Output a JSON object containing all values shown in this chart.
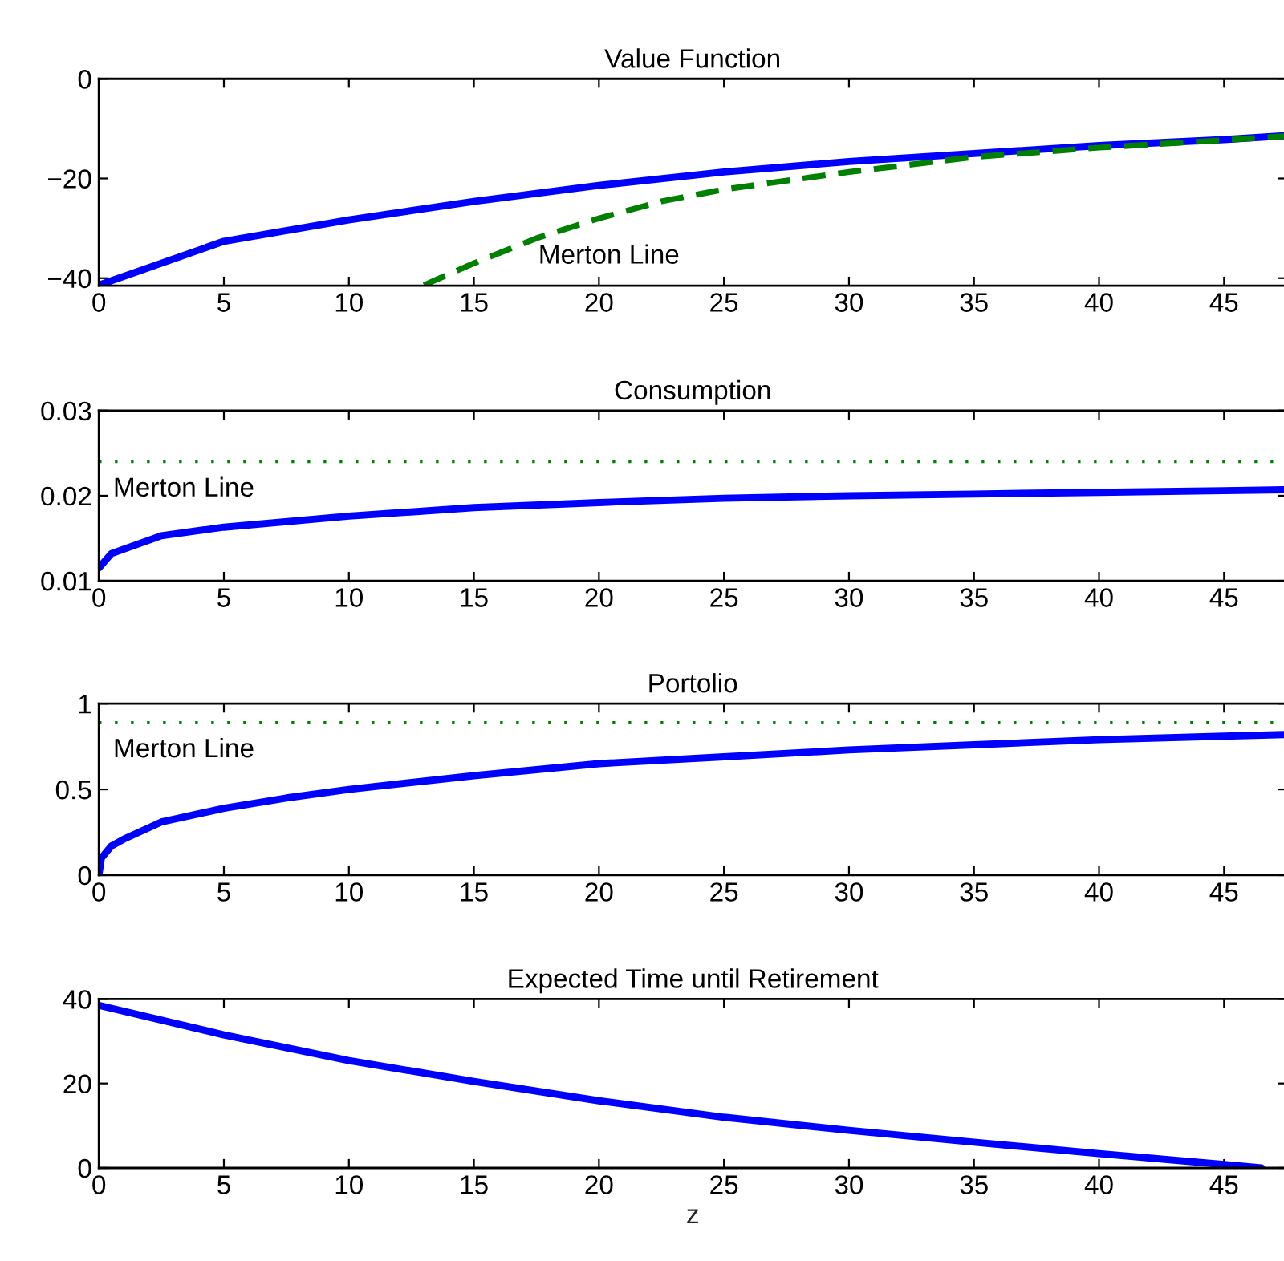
{
  "chart_data": [
    {
      "type": "line",
      "title": "Value Function",
      "xlim": [
        0,
        47.5
      ],
      "xticks": [
        0,
        5,
        10,
        15,
        20,
        25,
        30,
        35,
        40,
        45
      ],
      "ylim": [
        -41.5,
        0
      ],
      "yticks": [
        {
          "value": -40,
          "label": "−40"
        },
        {
          "value": -20,
          "label": "−20"
        },
        0
      ],
      "series": [
        {
          "color": "#0000ff",
          "line_style": "solid",
          "x": [
            0,
            2.5,
            5,
            10,
            15,
            20,
            25,
            30,
            35,
            40,
            45,
            47.5
          ],
          "values": [
            -41.4,
            -37,
            -32.6,
            -28.3,
            -24.6,
            -21.4,
            -18.7,
            -16.6,
            -15,
            -13.4,
            -12.2,
            -11.4
          ]
        },
        {
          "color": "#008000",
          "line_style": "dashed",
          "x": [
            13,
            15,
            17.5,
            20,
            22.5,
            25,
            30,
            35,
            40,
            45,
            47.5
          ],
          "values": [
            -41.4,
            -37,
            -32,
            -28,
            -24.6,
            -22.2,
            -18.7,
            -15.7,
            -13.8,
            -12.3,
            -11.5
          ]
        }
      ],
      "annotations": [
        "Merton Line"
      ]
    },
    {
      "type": "line",
      "title": "Consumption",
      "xlim": [
        0,
        47.5
      ],
      "xticks": [
        0,
        5,
        10,
        15,
        20,
        25,
        30,
        35,
        40,
        45
      ],
      "ylim": [
        0.01,
        0.03
      ],
      "yticks": [
        0.01,
        0.02,
        0.03
      ],
      "series": [
        {
          "color": "#0000ff",
          "line_style": "solid",
          "x": [
            0,
            0.5,
            2.5,
            5,
            10,
            15,
            20,
            25,
            30,
            35,
            40,
            45,
            47.5
          ],
          "values": [
            0.0115,
            0.0132,
            0.0153,
            0.0163,
            0.0176,
            0.0186,
            0.0192,
            0.0197,
            0.02,
            0.0202,
            0.0204,
            0.0206,
            0.0207
          ]
        }
      ],
      "ref_lines": [
        {
          "axis": "y",
          "value": 0.024,
          "label": "Merton Line",
          "color": "#008000",
          "line_style": "dotted"
        }
      ]
    },
    {
      "type": "line",
      "title": "Portolio",
      "xlim": [
        0,
        47.5
      ],
      "xticks": [
        0,
        5,
        10,
        15,
        20,
        25,
        30,
        35,
        40,
        45
      ],
      "ylim": [
        0,
        1
      ],
      "yticks": [
        0,
        0.5,
        1
      ],
      "series": [
        {
          "color": "#0000ff",
          "line_style": "solid",
          "x": [
            0,
            0.1,
            0.5,
            1,
            2.5,
            5,
            7.5,
            10,
            15,
            20,
            25,
            30,
            35,
            40,
            45,
            47.5
          ],
          "values": [
            0,
            0.1,
            0.17,
            0.21,
            0.31,
            0.39,
            0.45,
            0.5,
            0.58,
            0.65,
            0.69,
            0.73,
            0.76,
            0.79,
            0.81,
            0.82
          ]
        }
      ],
      "ref_lines": [
        {
          "axis": "y",
          "value": 0.89,
          "label": "Merton Line",
          "color": "#008000",
          "line_style": "dotted"
        }
      ]
    },
    {
      "type": "line",
      "title": "Expected Time until Retirement",
      "xlabel": "z",
      "xlim": [
        0,
        47.5
      ],
      "xticks": [
        0,
        5,
        10,
        15,
        20,
        25,
        30,
        35,
        40,
        45
      ],
      "ylim": [
        0,
        40
      ],
      "yticks": [
        0,
        20,
        40
      ],
      "series": [
        {
          "color": "#0000ff",
          "line_style": "solid",
          "x": [
            0,
            5,
            10,
            15,
            20,
            25,
            30,
            35,
            40,
            45,
            46.5
          ],
          "values": [
            38.5,
            31.5,
            25.4,
            20.5,
            15.9,
            12,
            8.9,
            6.1,
            3.4,
            0.8,
            0
          ]
        }
      ]
    }
  ]
}
